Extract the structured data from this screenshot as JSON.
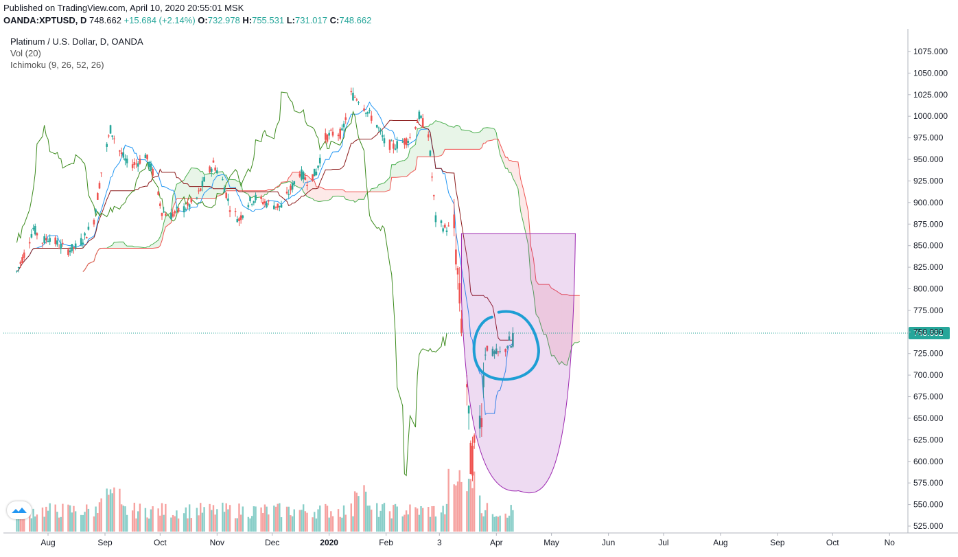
{
  "header": {
    "published": "Published on TradingView.com, April 10, 2020 20:55:01 MSK",
    "symbol": "OANDA:XPTUSD, D",
    "last": "748.662",
    "change": "+15.684 (+2.14%)",
    "o_label": "O:",
    "o_value": "732.978",
    "h_label": "H:",
    "h_value": "755.531",
    "l_label": "L:",
    "l_value": "731.017",
    "c_label": "C:",
    "c_value": "748.662"
  },
  "legend": {
    "title": "Platinum / U.S. Dollar, D, OANDA",
    "vol": "Vol (20)",
    "ichimoku": "Ichimoku (9, 26, 52, 26)"
  },
  "colors": {
    "up": "#26a69a",
    "down": "#ef5350",
    "tenkan": "#2196f3",
    "kijun": "#8b1a1a",
    "chikou": "#3d8b1e",
    "span_a": "#4caf50",
    "span_b": "#ef5350",
    "price_line": "#26a69a",
    "projection": "#9c27b0",
    "marker": "#1e9ed4"
  },
  "chart_data": {
    "type": "candlestick",
    "y_axis": {
      "min": 520,
      "max": 1090,
      "ticks": [
        525,
        550,
        575,
        600,
        625,
        650,
        675,
        700,
        725,
        750,
        775,
        800,
        825,
        850,
        875,
        900,
        925,
        950,
        975,
        1000,
        1025,
        1050,
        1075
      ],
      "tick_labels": [
        "525.000",
        "550.000",
        "575.000",
        "600.000",
        "625.000",
        "650.000",
        "675.000",
        "700.000",
        "725.000",
        "750.000",
        "775.000",
        "800.000",
        "825.000",
        "850.000",
        "875.000",
        "900.000",
        "925.000",
        "950.000",
        "975.000",
        "1000.000",
        "1025.000",
        "1050.000",
        "1075.000"
      ]
    },
    "x_axis": {
      "labels": [
        "Aug",
        "Sep",
        "Oct",
        "Nov",
        "Dec",
        "2020",
        "Feb",
        "3",
        "Apr",
        "May",
        "Jun",
        "Jul",
        "Aug",
        "Sep",
        "Oct",
        "No"
      ],
      "bold": [
        "2020"
      ]
    },
    "last_price": 748.662,
    "last_price_label": "748.662",
    "price_path": [
      [
        "2019-07-15",
        820
      ],
      [
        "2019-07-19",
        840
      ],
      [
        "2019-07-24",
        870
      ],
      [
        "2019-07-29",
        855
      ],
      [
        "2019-08-02",
        860
      ],
      [
        "2019-08-07",
        850
      ],
      [
        "2019-08-12",
        845
      ],
      [
        "2019-08-16",
        848
      ],
      [
        "2019-08-21",
        860
      ],
      [
        "2019-08-26",
        880
      ],
      [
        "2019-08-30",
        935
      ],
      [
        "2019-09-04",
        985
      ],
      [
        "2019-09-09",
        960
      ],
      [
        "2019-09-13",
        945
      ],
      [
        "2019-09-18",
        945
      ],
      [
        "2019-09-23",
        955
      ],
      [
        "2019-09-27",
        935
      ],
      [
        "2019-10-02",
        890
      ],
      [
        "2019-10-07",
        885
      ],
      [
        "2019-10-11",
        890
      ],
      [
        "2019-10-16",
        895
      ],
      [
        "2019-10-21",
        905
      ],
      [
        "2019-10-25",
        925
      ],
      [
        "2019-10-30",
        945
      ],
      [
        "2019-11-04",
        925
      ],
      [
        "2019-11-08",
        895
      ],
      [
        "2019-11-13",
        880
      ],
      [
        "2019-11-18",
        900
      ],
      [
        "2019-11-22",
        905
      ],
      [
        "2019-11-27",
        900
      ],
      [
        "2019-12-02",
        897
      ],
      [
        "2019-12-06",
        895
      ],
      [
        "2019-12-11",
        915
      ],
      [
        "2019-12-16",
        935
      ],
      [
        "2019-12-20",
        925
      ],
      [
        "2019-12-25",
        935
      ],
      [
        "2019-12-30",
        975
      ],
      [
        "2020-01-03",
        980
      ],
      [
        "2020-01-08",
        980
      ],
      [
        "2020-01-13",
        1025
      ],
      [
        "2020-01-17",
        1020
      ],
      [
        "2020-01-22",
        1005
      ],
      [
        "2020-01-27",
        990
      ],
      [
        "2020-01-31",
        970
      ],
      [
        "2020-02-05",
        965
      ],
      [
        "2020-02-10",
        970
      ],
      [
        "2020-02-14",
        975
      ],
      [
        "2020-02-19",
        1000
      ],
      [
        "2020-02-24",
        980
      ],
      [
        "2020-02-28",
        880
      ],
      [
        "2020-03-04",
        870
      ],
      [
        "2020-03-09",
        870
      ],
      [
        "2020-03-13",
        760
      ],
      [
        "2020-03-16",
        690
      ],
      [
        "2020-03-18",
        600
      ],
      [
        "2020-03-20",
        610
      ],
      [
        "2020-03-24",
        660
      ],
      [
        "2020-03-26",
        735
      ],
      [
        "2020-03-30",
        725
      ],
      [
        "2020-04-03",
        725
      ],
      [
        "2020-04-06",
        730
      ],
      [
        "2020-04-08",
        740
      ],
      [
        "2020-04-09",
        733
      ],
      [
        "2020-04-10",
        748.662
      ]
    ],
    "volume_scale": {
      "min": 0,
      "max": 100
    },
    "ichimoku": {
      "tenkan": 9,
      "kijun": 26,
      "senkou_b": 52,
      "displacement": 26
    },
    "annotations": [
      {
        "type": "ellipse_highlight",
        "around": "2020-04 consolidation"
      },
      {
        "type": "projection_curve",
        "from": "2020-03-13",
        "to": "2020-05-14"
      }
    ]
  }
}
